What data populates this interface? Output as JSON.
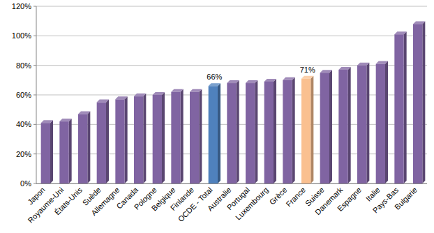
{
  "chart_data": {
    "type": "bar",
    "categories": [
      "Japon",
      "Royaume-Uni",
      "États-Unis",
      "Suède",
      "Allemagne",
      "Canada",
      "Pologne",
      "Belgique",
      "Finlande",
      "OCDE - Total",
      "Australie",
      "Portugal",
      "Luxembourg",
      "Grèce",
      "France",
      "Suisse",
      "Danemark",
      "Espagne",
      "Italie",
      "Pays-Bas",
      "Bulgarie"
    ],
    "values": [
      41,
      42,
      47,
      55,
      57,
      59,
      60,
      62,
      62,
      66,
      68,
      68,
      69,
      70,
      71,
      75,
      77,
      80,
      81,
      101,
      108
    ],
    "value_labels": [
      null,
      null,
      null,
      null,
      null,
      null,
      null,
      null,
      null,
      "66%",
      null,
      null,
      null,
      null,
      "71%",
      null,
      null,
      null,
      null,
      null,
      null
    ],
    "colors": [
      "#8064a2",
      "#8064a2",
      "#8064a2",
      "#8064a2",
      "#8064a2",
      "#8064a2",
      "#8064a2",
      "#8064a2",
      "#8064a2",
      "#4f81bd",
      "#8064a2",
      "#8064a2",
      "#8064a2",
      "#8064a2",
      "#fac090",
      "#8064a2",
      "#8064a2",
      "#8064a2",
      "#8064a2",
      "#8064a2",
      "#8064a2"
    ],
    "data_labels": true,
    "ylim": [
      0,
      120
    ],
    "yticks": [
      {
        "value": 0,
        "label": "0%"
      },
      {
        "value": 20,
        "label": "20%"
      },
      {
        "value": 40,
        "label": "40%"
      },
      {
        "value": 60,
        "label": "60%"
      },
      {
        "value": 80,
        "label": "80%"
      },
      {
        "value": 100,
        "label": "100%"
      },
      {
        "value": 120,
        "label": "120%"
      }
    ],
    "grid": true
  }
}
